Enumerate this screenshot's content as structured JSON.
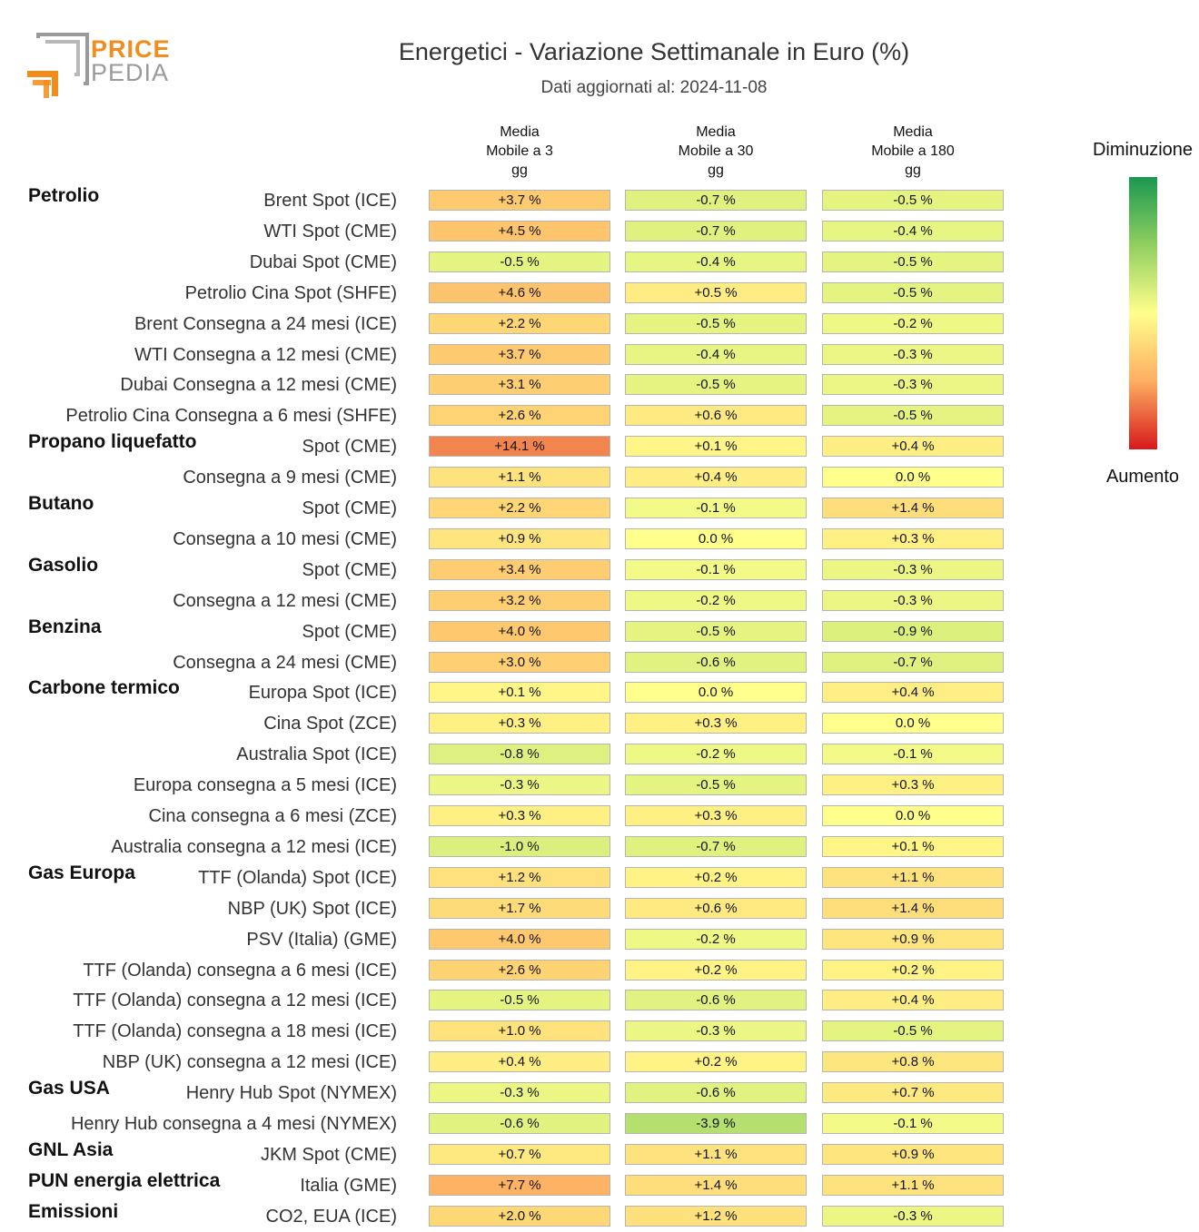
{
  "logo": {
    "word1": "PRICE",
    "word2": "PEDIA",
    "accent_color": "#f28c1c",
    "gray_color": "#9a9a9a"
  },
  "title": "Energetici - Variazione Settimanale in Euro (%)",
  "subtitle": "Dati aggiornati al: 2024-11-08",
  "legend": {
    "top_label": "Diminuzione",
    "bottom_label": "Aumento"
  },
  "chart_data": {
    "type": "table",
    "title": "Energetici - Variazione Settimanale in Euro (%)",
    "subtitle": "Dati aggiornati al: 2024-11-08",
    "columns": [
      [
        "Media",
        "Mobile a 3",
        "gg"
      ],
      [
        "Media",
        "Mobile a 30",
        "gg"
      ],
      [
        "Media",
        "Mobile a 180",
        "gg"
      ]
    ],
    "color_scale": {
      "negative": "Diminuzione",
      "positive": "Aumento",
      "colors": [
        "#1a9850",
        "#91cf60",
        "#ffff8c",
        "#fdae61",
        "#d7191c"
      ]
    },
    "rows": [
      {
        "group": "Petrolio",
        "label": "Brent Spot (ICE)",
        "values": [
          3.7,
          -0.7,
          -0.5
        ],
        "texts": [
          "+3.7 %",
          "-0.7 %",
          "-0.5 %"
        ]
      },
      {
        "group": "",
        "label": "WTI Spot (CME)",
        "values": [
          4.5,
          -0.7,
          -0.4
        ],
        "texts": [
          "+4.5 %",
          "-0.7 %",
          "-0.4 %"
        ]
      },
      {
        "group": "",
        "label": "Dubai Spot (CME)",
        "values": [
          -0.5,
          -0.4,
          -0.5
        ],
        "texts": [
          "-0.5 %",
          "-0.4 %",
          "-0.5 %"
        ]
      },
      {
        "group": "",
        "label": "Petrolio Cina Spot (SHFE)",
        "values": [
          4.6,
          0.5,
          -0.5
        ],
        "texts": [
          "+4.6 %",
          "+0.5 %",
          "-0.5 %"
        ]
      },
      {
        "group": "",
        "label": "Brent Consegna a 24 mesi (ICE)",
        "values": [
          2.2,
          -0.5,
          -0.2
        ],
        "texts": [
          "+2.2 %",
          "-0.5 %",
          "-0.2 %"
        ]
      },
      {
        "group": "",
        "label": "WTI Consegna a 12 mesi (CME)",
        "values": [
          3.7,
          -0.4,
          -0.3
        ],
        "texts": [
          "+3.7 %",
          "-0.4 %",
          "-0.3 %"
        ]
      },
      {
        "group": "",
        "label": "Dubai Consegna a 12 mesi (CME)",
        "values": [
          3.1,
          -0.5,
          -0.3
        ],
        "texts": [
          "+3.1 %",
          "-0.5 %",
          "-0.3 %"
        ]
      },
      {
        "group": "",
        "label": "Petrolio Cina Consegna a 6 mesi (SHFE)",
        "values": [
          2.6,
          0.6,
          -0.5
        ],
        "texts": [
          "+2.6 %",
          "+0.6 %",
          "-0.5 %"
        ]
      },
      {
        "group": "Propano liquefatto",
        "label": "Spot (CME)",
        "values": [
          14.1,
          0.1,
          0.4
        ],
        "texts": [
          "+14.1 %",
          "+0.1 %",
          "+0.4 %"
        ]
      },
      {
        "group": "",
        "label": "Consegna a 9 mesi (CME)",
        "values": [
          1.1,
          0.4,
          0.0
        ],
        "texts": [
          "+1.1 %",
          "+0.4 %",
          "0.0 %"
        ]
      },
      {
        "group": "Butano",
        "label": "Spot (CME)",
        "values": [
          2.2,
          -0.1,
          1.4
        ],
        "texts": [
          "+2.2 %",
          "-0.1 %",
          "+1.4 %"
        ]
      },
      {
        "group": "",
        "label": "Consegna a 10 mesi (CME)",
        "values": [
          0.9,
          0.0,
          0.3
        ],
        "texts": [
          "+0.9 %",
          "0.0 %",
          "+0.3 %"
        ]
      },
      {
        "group": "Gasolio",
        "label": "Spot (CME)",
        "values": [
          3.4,
          -0.1,
          -0.3
        ],
        "texts": [
          "+3.4 %",
          "-0.1 %",
          "-0.3 %"
        ]
      },
      {
        "group": "",
        "label": "Consegna a 12 mesi (CME)",
        "values": [
          3.2,
          -0.2,
          -0.3
        ],
        "texts": [
          "+3.2 %",
          "-0.2 %",
          "-0.3 %"
        ]
      },
      {
        "group": "Benzina",
        "label": "Spot (CME)",
        "values": [
          4.0,
          -0.5,
          -0.9
        ],
        "texts": [
          "+4.0 %",
          "-0.5 %",
          "-0.9 %"
        ]
      },
      {
        "group": "",
        "label": "Consegna a 24 mesi (CME)",
        "values": [
          3.0,
          -0.6,
          -0.7
        ],
        "texts": [
          "+3.0 %",
          "-0.6 %",
          "-0.7 %"
        ]
      },
      {
        "group": "Carbone termico",
        "label": "Europa Spot (ICE)",
        "values": [
          0.1,
          0.0,
          0.4
        ],
        "texts": [
          "+0.1 %",
          "0.0 %",
          "+0.4 %"
        ]
      },
      {
        "group": "",
        "label": "Cina Spot (ZCE)",
        "values": [
          0.3,
          0.3,
          0.0
        ],
        "texts": [
          "+0.3 %",
          "+0.3 %",
          "0.0 %"
        ]
      },
      {
        "group": "",
        "label": "Australia Spot (ICE)",
        "values": [
          -0.8,
          -0.2,
          -0.1
        ],
        "texts": [
          "-0.8 %",
          "-0.2 %",
          "-0.1 %"
        ]
      },
      {
        "group": "",
        "label": "Europa consegna a 5 mesi (ICE)",
        "values": [
          -0.3,
          -0.5,
          0.3
        ],
        "texts": [
          "-0.3 %",
          "-0.5 %",
          "+0.3 %"
        ]
      },
      {
        "group": "",
        "label": "Cina consegna a 6 mesi (ZCE)",
        "values": [
          0.3,
          0.3,
          0.0
        ],
        "texts": [
          "+0.3 %",
          "+0.3 %",
          "0.0 %"
        ]
      },
      {
        "group": "",
        "label": "Australia consegna a 12 mesi (ICE)",
        "values": [
          -1.0,
          -0.7,
          0.1
        ],
        "texts": [
          "-1.0 %",
          "-0.7 %",
          "+0.1 %"
        ]
      },
      {
        "group": "Gas Europa",
        "label": "TTF (Olanda) Spot (ICE)",
        "values": [
          1.2,
          0.2,
          1.1
        ],
        "texts": [
          "+1.2 %",
          "+0.2 %",
          "+1.1 %"
        ]
      },
      {
        "group": "",
        "label": "NBP (UK) Spot (ICE)",
        "values": [
          1.7,
          0.6,
          1.4
        ],
        "texts": [
          "+1.7 %",
          "+0.6 %",
          "+1.4 %"
        ]
      },
      {
        "group": "",
        "label": "PSV (Italia) (GME)",
        "values": [
          4.0,
          -0.2,
          0.9
        ],
        "texts": [
          "+4.0 %",
          "-0.2 %",
          "+0.9 %"
        ]
      },
      {
        "group": "",
        "label": "TTF (Olanda) consegna a 6 mesi (ICE)",
        "values": [
          2.6,
          0.2,
          0.2
        ],
        "texts": [
          "+2.6 %",
          "+0.2 %",
          "+0.2 %"
        ]
      },
      {
        "group": "",
        "label": "TTF (Olanda) consegna a 12 mesi (ICE)",
        "values": [
          -0.5,
          -0.6,
          0.4
        ],
        "texts": [
          "-0.5 %",
          "-0.6 %",
          "+0.4 %"
        ]
      },
      {
        "group": "",
        "label": "TTF (Olanda) consegna a 18 mesi (ICE)",
        "values": [
          1.0,
          -0.3,
          -0.5
        ],
        "texts": [
          "+1.0 %",
          "-0.3 %",
          "-0.5 %"
        ]
      },
      {
        "group": "",
        "label": "NBP (UK) consegna a 12 mesi (ICE)",
        "values": [
          0.4,
          0.2,
          0.8
        ],
        "texts": [
          "+0.4 %",
          "+0.2 %",
          "+0.8 %"
        ]
      },
      {
        "group": "Gas USA",
        "label": "Henry Hub Spot (NYMEX)",
        "values": [
          -0.3,
          -0.6,
          0.7
        ],
        "texts": [
          "-0.3 %",
          "-0.6 %",
          "+0.7 %"
        ]
      },
      {
        "group": "",
        "label": "Henry Hub consegna a 4 mesi (NYMEX)",
        "values": [
          -0.6,
          -3.9,
          -0.1
        ],
        "texts": [
          "-0.6 %",
          "-3.9 %",
          "-0.1 %"
        ]
      },
      {
        "group": "GNL Asia",
        "label": "JKM Spot (CME)",
        "values": [
          0.7,
          1.1,
          0.9
        ],
        "texts": [
          "+0.7 %",
          "+1.1 %",
          "+0.9 %"
        ]
      },
      {
        "group": "PUN energia elettrica",
        "label": "Italia (GME)",
        "values": [
          7.7,
          1.4,
          1.1
        ],
        "texts": [
          "+7.7 %",
          "+1.4 %",
          "+1.1 %"
        ]
      },
      {
        "group": "Emissioni",
        "label": "CO2, EUA (ICE)",
        "values": [
          2.0,
          1.2,
          -0.3
        ],
        "texts": [
          "+2.0 %",
          "+1.2 %",
          "-0.3 %"
        ]
      }
    ]
  }
}
